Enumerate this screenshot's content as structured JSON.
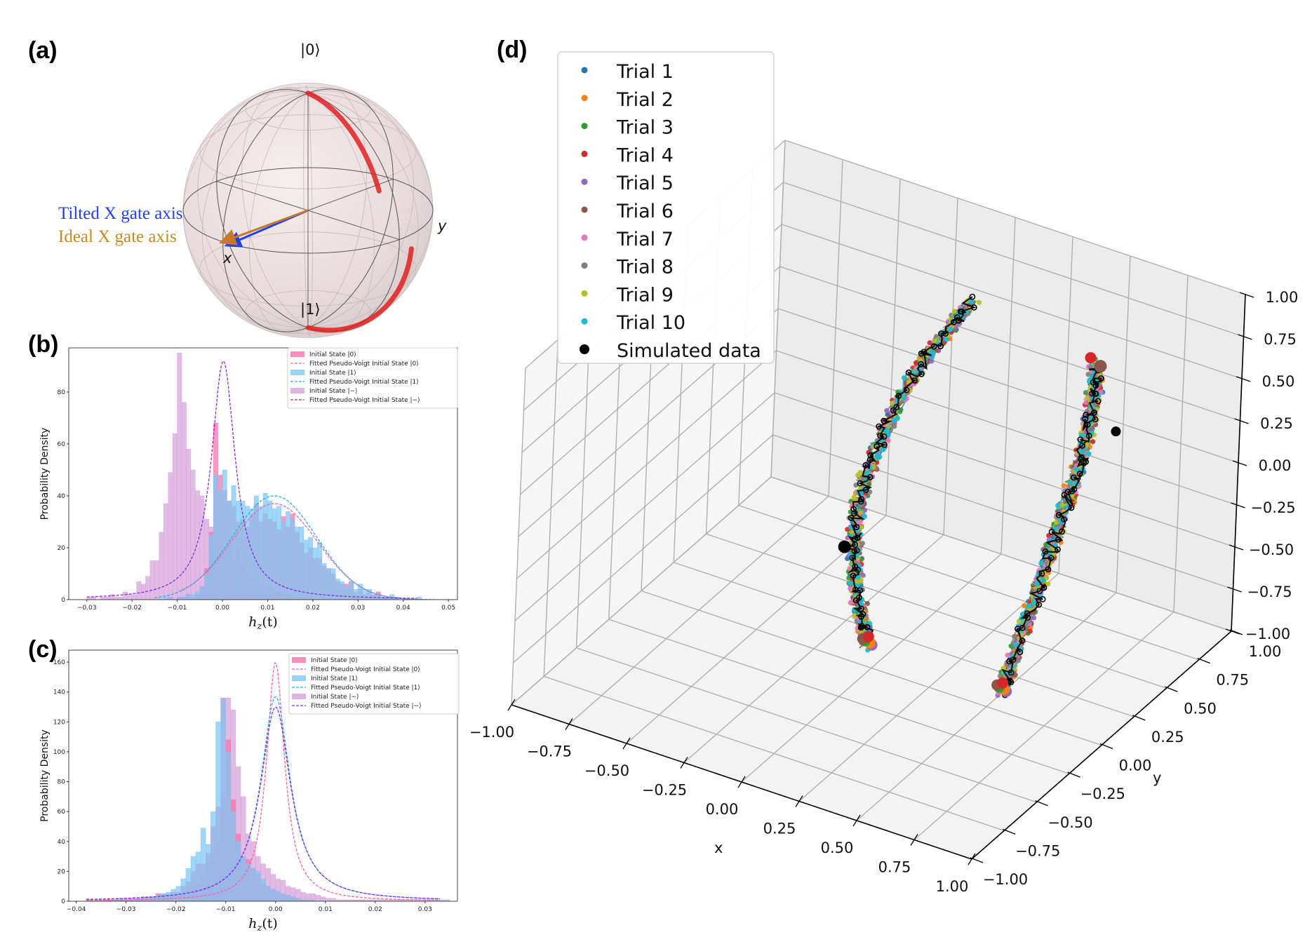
{
  "panels": {
    "a": {
      "label": "(a)",
      "type": "bloch-sphere",
      "pole_top": "|0⟩",
      "pole_bottom": "|1⟩",
      "axis_x": "x",
      "axis_y": "y",
      "arrows": [
        {
          "name": "Tilted X gate axis",
          "color": "#1f3fff"
        },
        {
          "name": "Ideal X gate axis",
          "color": "#c88a1e"
        }
      ],
      "trajectory_color": "#e02020"
    },
    "b": {
      "label": "(b)"
    },
    "c": {
      "label": "(c)"
    },
    "d": {
      "label": "(d)"
    }
  },
  "legend_hist": [
    {
      "kind": "patch",
      "label": "Initial State |0⟩",
      "color": "#ff6fa8"
    },
    {
      "kind": "line",
      "label": "Fitted Pseudo-Voigt Initial State |0⟩",
      "color": "#ff5fa0"
    },
    {
      "kind": "patch",
      "label": "Initial State |1⟩",
      "color": "#7cc8f5"
    },
    {
      "kind": "line",
      "label": "Fitted Pseudo-Voigt Initial State |1⟩",
      "color": "#1fb0f0"
    },
    {
      "kind": "patch",
      "label": "Initial State |−⟩",
      "color": "#d7a0dc"
    },
    {
      "kind": "line",
      "label": "Fitted Pseudo-Voigt Initial State |−⟩",
      "color": "#8a2be2"
    }
  ],
  "chart_data": [
    {
      "id": "b",
      "type": "bar",
      "title": "",
      "xlabel": "h_z(t)",
      "ylabel": "Probability Density",
      "xlim": [
        -0.034,
        0.052
      ],
      "ylim": [
        0,
        97
      ],
      "xticks": [
        "−0.03",
        "−0.02",
        "−0.01",
        "0.00",
        "0.01",
        "0.02",
        "0.03",
        "0.04",
        "0.05"
      ],
      "xtick_values": [
        -0.03,
        -0.02,
        -0.01,
        0.0,
        0.01,
        0.02,
        0.03,
        0.04,
        0.05
      ],
      "yticks": [
        "0",
        "20",
        "40",
        "60",
        "80"
      ],
      "ytick_values": [
        0,
        20,
        40,
        60,
        80
      ],
      "legend": "top-right",
      "bin_width": 0.001,
      "series": [
        {
          "name": "Initial State |−⟩",
          "kind": "hist",
          "color": "#d7a0dc",
          "x0": -0.03,
          "values": [
            1,
            1,
            0,
            1,
            1,
            2,
            1,
            1,
            3,
            2,
            2,
            7,
            6,
            9,
            15,
            15,
            26,
            37,
            49,
            64,
            95,
            76,
            58,
            50,
            42,
            40,
            31,
            28,
            21,
            21,
            18,
            20,
            15,
            20,
            13,
            10,
            8,
            8,
            6,
            5,
            5,
            4,
            3,
            3,
            2,
            2,
            1,
            1,
            1,
            1,
            0,
            0,
            0,
            0,
            0,
            0,
            0,
            0,
            0,
            0,
            0,
            0,
            0,
            0,
            0,
            0,
            0,
            0,
            0,
            0,
            0,
            0,
            0,
            0,
            0
          ]
        },
        {
          "name": "Initial State |0⟩",
          "kind": "hist",
          "color": "#ff6fa8",
          "x0": -0.015,
          "values": [
            0,
            0,
            0,
            1,
            0,
            1,
            1,
            2,
            1,
            2,
            5,
            12,
            26,
            68,
            48,
            42,
            38,
            36,
            30,
            31,
            28,
            33,
            37,
            30,
            33,
            31,
            30,
            27,
            32,
            28,
            33,
            26,
            22,
            18,
            20,
            16,
            16,
            13,
            12,
            10,
            7,
            6,
            6,
            7,
            3,
            4,
            2,
            3,
            2,
            3,
            1,
            1,
            1,
            1,
            0,
            0,
            0,
            0,
            0,
            0
          ]
        },
        {
          "name": "Initial State |1⟩",
          "kind": "hist",
          "color": "#7cc8f5",
          "x0": -0.015,
          "values": [
            0,
            0,
            1,
            1,
            0,
            1,
            1,
            2,
            2,
            3,
            5,
            10,
            25,
            48,
            42,
            50,
            38,
            44,
            38,
            38,
            36,
            35,
            40,
            36,
            41,
            38,
            35,
            36,
            30,
            34,
            31,
            28,
            28,
            23,
            24,
            20,
            22,
            14,
            12,
            12,
            8,
            7,
            5,
            7,
            4,
            6,
            4,
            4,
            2,
            2,
            1,
            1,
            2,
            1,
            0,
            0,
            0,
            0,
            1,
            0,
            0,
            0,
            0
          ]
        },
        {
          "name": "Fitted Pseudo-Voigt Initial State |0⟩",
          "kind": "fit",
          "color": "#ff5fa0",
          "center": 0.0115,
          "amplitude": 37,
          "sigma": 0.0095,
          "range": [
            -0.009,
            0.044
          ]
        },
        {
          "name": "Fitted Pseudo-Voigt Initial State |1⟩",
          "kind": "fit",
          "color": "#1fb0f0",
          "center": 0.0115,
          "amplitude": 40,
          "sigma": 0.0093,
          "range": [
            -0.015,
            0.047
          ]
        },
        {
          "name": "Fitted Pseudo-Voigt Initial State |−⟩",
          "kind": "fit-lorentz",
          "color": "#8a2be2",
          "center": 0.0002,
          "amplitude": 92,
          "gamma": 0.0032,
          "range": [
            -0.03,
            0.043
          ]
        }
      ]
    },
    {
      "id": "c",
      "type": "bar",
      "title": "",
      "xlabel": "h_z(t)",
      "ylabel": "Probability Density",
      "xlim": [
        -0.0415,
        0.0365
      ],
      "ylim": [
        0,
        168
      ],
      "xticks": [
        "−0.04",
        "−0.03",
        "−0.02",
        "−0.01",
        "0.00",
        "0.01",
        "0.02",
        "0.03"
      ],
      "xtick_values": [
        -0.04,
        -0.03,
        -0.02,
        -0.01,
        0.0,
        0.01,
        0.02,
        0.03
      ],
      "yticks": [
        "0",
        "20",
        "40",
        "60",
        "80",
        "100",
        "120",
        "140",
        "160"
      ],
      "ytick_values": [
        0,
        20,
        40,
        60,
        80,
        100,
        120,
        140,
        160
      ],
      "legend": "top-right",
      "bin_width": 0.001,
      "series": [
        {
          "name": "Initial State |−⟩",
          "kind": "hist",
          "color": "#d7a0dc",
          "x0": -0.038,
          "values": [
            1,
            0,
            1,
            1,
            1,
            1,
            2,
            2,
            2,
            1,
            2,
            3,
            3,
            2,
            3,
            5,
            4,
            4,
            4,
            6,
            9,
            10,
            12,
            18,
            26,
            34,
            40,
            70,
            136,
            128,
            90,
            70,
            45,
            40,
            30,
            25,
            22,
            18,
            15,
            14,
            10,
            9,
            8,
            6,
            5,
            5,
            4,
            3,
            2,
            2,
            1,
            1,
            1,
            1,
            1,
            1,
            1,
            1,
            1,
            1,
            1,
            1,
            1,
            1,
            1,
            1,
            1,
            1,
            1,
            1,
            1,
            1
          ]
        },
        {
          "name": "Initial State |0⟩",
          "kind": "hist",
          "color": "#ff6fa8",
          "x0": -0.036,
          "values": [
            0,
            0,
            1,
            1,
            1,
            1,
            1,
            2,
            2,
            2,
            3,
            3,
            5,
            4,
            5,
            6,
            6,
            10,
            13,
            20,
            25,
            25,
            32,
            50,
            63,
            136,
            108,
            68,
            45,
            30,
            28,
            22,
            18,
            12,
            10,
            8,
            6,
            5,
            4,
            3,
            2,
            1,
            1,
            1,
            0,
            0,
            0,
            0,
            0,
            0,
            0,
            0,
            0,
            0,
            0,
            0,
            0,
            0,
            0,
            0,
            0,
            0,
            0,
            0,
            0,
            0,
            0,
            0,
            0,
            0,
            0
          ]
        },
        {
          "name": "Initial State |1⟩",
          "kind": "hist",
          "color": "#7cc8f5",
          "x0": -0.036,
          "values": [
            0,
            0,
            0,
            0,
            1,
            1,
            1,
            1,
            2,
            3,
            3,
            3,
            4,
            5,
            6,
            8,
            10,
            15,
            22,
            30,
            33,
            49,
            38,
            60,
            120,
            135,
            100,
            60,
            40,
            30,
            25,
            22,
            20,
            15,
            10,
            8,
            7,
            5,
            4,
            3,
            2,
            1,
            1,
            1,
            0,
            0,
            0,
            0,
            0,
            0,
            0,
            0,
            0,
            0,
            0,
            0,
            0,
            0,
            0,
            0,
            0,
            0,
            0,
            0,
            0,
            0,
            0,
            0,
            0,
            0,
            1
          ]
        },
        {
          "name": "Fitted Pseudo-Voigt Initial State |0⟩",
          "kind": "fit-lorentz",
          "color": "#ff5fa0",
          "center": 0.0,
          "amplitude": 160,
          "gamma": 0.0022,
          "range": [
            -0.038,
            0.033
          ]
        },
        {
          "name": "Fitted Pseudo-Voigt Initial State |1⟩",
          "kind": "fit-lorentz",
          "color": "#1fb0f0",
          "center": 0.0,
          "amplitude": 137,
          "gamma": 0.0036,
          "range": [
            -0.038,
            0.033
          ]
        },
        {
          "name": "Fitted Pseudo-Voigt Initial State |−⟩",
          "kind": "fit-lorentz",
          "color": "#8a2be2",
          "center": 0.0,
          "amplitude": 130,
          "gamma": 0.0037,
          "range": [
            -0.038,
            0.033
          ]
        }
      ]
    },
    {
      "id": "d",
      "type": "scatter",
      "title": "",
      "projection": "3d",
      "xlabel": "x",
      "ylabel": "y",
      "zlabel": "",
      "xlim": [
        -1,
        1
      ],
      "ylim": [
        -1,
        1
      ],
      "zlim": [
        -1,
        1
      ],
      "ticks": [
        "−1.00",
        "−0.75",
        "−0.50",
        "−0.25",
        "0.00",
        "0.25",
        "0.50",
        "0.75",
        "1.00"
      ],
      "tick_values": [
        -1,
        -0.75,
        -0.5,
        -0.25,
        0,
        0.25,
        0.5,
        0.75,
        1
      ],
      "legend": "top-left",
      "series": [
        {
          "name": "Trial 1",
          "color": "#1f77b4"
        },
        {
          "name": "Trial 2",
          "color": "#ff7f0e"
        },
        {
          "name": "Trial 3",
          "color": "#2ca02c"
        },
        {
          "name": "Trial 4",
          "color": "#d62728"
        },
        {
          "name": "Trial 5",
          "color": "#9467bd"
        },
        {
          "name": "Trial 6",
          "color": "#8c564b"
        },
        {
          "name": "Trial 7",
          "color": "#e377c2"
        },
        {
          "name": "Trial 8",
          "color": "#7f7f7f"
        },
        {
          "name": "Trial 9",
          "color": "#bcbd22"
        },
        {
          "name": "Trial 10",
          "color": "#17becf"
        },
        {
          "name": "Simulated data",
          "color": "#000000"
        }
      ],
      "trajectories": [
        {
          "name": "left-arc",
          "points": [
            [
              -0.05,
              0.05,
              -0.92
            ],
            [
              -0.07,
              0.05,
              -0.8
            ],
            [
              -0.1,
              0.05,
              -0.65
            ],
            [
              -0.12,
              0.06,
              -0.5
            ],
            [
              -0.14,
              0.08,
              -0.35
            ],
            [
              -0.15,
              0.12,
              -0.2
            ],
            [
              -0.15,
              0.17,
              -0.05
            ],
            [
              -0.14,
              0.24,
              0.1
            ],
            [
              -0.12,
              0.32,
              0.25
            ],
            [
              -0.1,
              0.42,
              0.4
            ],
            [
              -0.07,
              0.52,
              0.52
            ],
            [
              -0.04,
              0.62,
              0.62
            ],
            [
              -0.02,
              0.72,
              0.68
            ]
          ]
        },
        {
          "name": "right-arc",
          "points": [
            [
              0.55,
              0.02,
              -0.9
            ],
            [
              0.55,
              0.1,
              -0.78
            ],
            [
              0.55,
              0.18,
              -0.62
            ],
            [
              0.56,
              0.26,
              -0.45
            ],
            [
              0.57,
              0.32,
              -0.28
            ],
            [
              0.58,
              0.38,
              -0.12
            ],
            [
              0.6,
              0.42,
              0.05
            ],
            [
              0.62,
              0.45,
              0.2
            ],
            [
              0.63,
              0.47,
              0.35
            ],
            [
              0.63,
              0.5,
              0.5
            ],
            [
              0.63,
              0.52,
              0.62
            ],
            [
              0.62,
              0.54,
              0.72
            ]
          ]
        }
      ]
    }
  ]
}
